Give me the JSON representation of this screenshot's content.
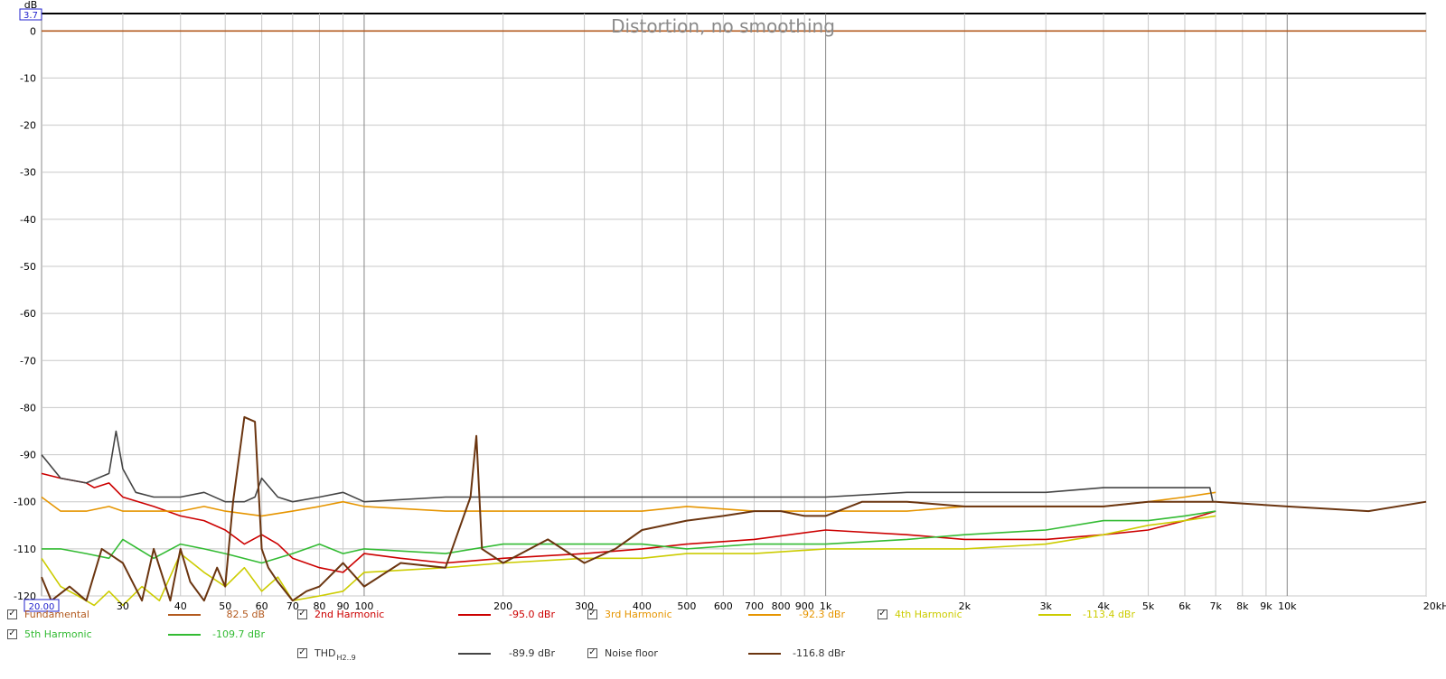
{
  "chart_data": {
    "type": "line",
    "title": "Distortion, no smoothing",
    "xlabel": "",
    "ylabel": "dB",
    "x_scale": "log",
    "xlim": [
      20,
      20000
    ],
    "ylim": [
      -120,
      3.7
    ],
    "grid": true,
    "y_ticks": [
      0,
      -10,
      -20,
      -30,
      -40,
      -50,
      -60,
      -70,
      -80,
      -90,
      -100,
      -110,
      -120
    ],
    "y_tick_labels": [
      "0",
      "-10",
      "-20",
      "-30",
      "-40",
      "-50",
      "-60",
      "-70",
      "-80",
      "-90",
      "-100",
      "-110",
      "-120"
    ],
    "x_ticks": [
      30,
      40,
      50,
      60,
      70,
      80,
      90,
      100,
      200,
      300,
      400,
      500,
      600,
      700,
      800,
      900,
      1000,
      2000,
      3000,
      4000,
      5000,
      6000,
      7000,
      8000,
      9000,
      10000,
      20000
    ],
    "x_tick_labels": [
      "30",
      "40",
      "50",
      "60",
      "70",
      "80",
      "90",
      "100",
      "200",
      "300",
      "400",
      "500",
      "600",
      "700",
      "800",
      "900",
      "1k",
      "2k",
      "3k",
      "4k",
      "5k",
      "6k",
      "7k",
      "8k",
      "9k",
      "10k",
      "20kHz"
    ],
    "x_start_label": "20.00",
    "y_top_label": "3.7",
    "series": [
      {
        "name": "Fundamental",
        "color": "#b35a1f",
        "x": [
          20,
          20000
        ],
        "y": [
          0,
          0
        ]
      },
      {
        "name": "2nd Harmonic",
        "color": "#cc0000",
        "x": [
          20,
          22,
          25,
          26,
          28,
          30,
          35,
          40,
          45,
          50,
          55,
          60,
          65,
          70,
          80,
          90,
          100,
          120,
          150,
          200,
          300,
          400,
          500,
          700,
          1000,
          1500,
          2000,
          3000,
          4000,
          5000,
          6000,
          7000
        ],
        "y": [
          -94,
          -95,
          -96,
          -97,
          -96,
          -99,
          -101,
          -103,
          -104,
          -106,
          -109,
          -107,
          -109,
          -112,
          -114,
          -115,
          -111,
          -112,
          -113,
          -112,
          -111,
          -110,
          -109,
          -108,
          -106,
          -107,
          -108,
          -108,
          -107,
          -106,
          -104,
          -102
        ]
      },
      {
        "name": "3rd Harmonic",
        "color": "#e69500",
        "x": [
          20,
          22,
          25,
          28,
          30,
          35,
          40,
          45,
          50,
          60,
          70,
          80,
          90,
          100,
          150,
          200,
          300,
          400,
          500,
          700,
          1000,
          1500,
          2000,
          3000,
          4000,
          5000,
          6000,
          7000
        ],
        "y": [
          -99,
          -102,
          -102,
          -101,
          -102,
          -102,
          -102,
          -101,
          -102,
          -103,
          -102,
          -101,
          -100,
          -101,
          -102,
          -102,
          -102,
          -102,
          -101,
          -102,
          -102,
          -102,
          -101,
          -101,
          -101,
          -100,
          -99,
          -98
        ]
      },
      {
        "name": "4th Harmonic",
        "color": "#cccc00",
        "x": [
          20,
          22,
          24,
          26,
          28,
          30,
          33,
          36,
          40,
          45,
          50,
          55,
          60,
          65,
          70,
          80,
          90,
          100,
          150,
          200,
          300,
          400,
          500,
          700,
          1000,
          1500,
          2000,
          3000,
          4000,
          5000,
          6000,
          7000
        ],
        "y": [
          -112,
          -118,
          -120,
          -122,
          -119,
          -122,
          -118,
          -121,
          -111,
          -115,
          -118,
          -114,
          -119,
          -116,
          -121,
          -120,
          -119,
          -115,
          -114,
          -113,
          -112,
          -112,
          -111,
          -111,
          -110,
          -110,
          -110,
          -109,
          -107,
          -105,
          -104,
          -103
        ]
      },
      {
        "name": "5th Harmonic",
        "color": "#33bb33",
        "x": [
          20,
          22,
          25,
          28,
          30,
          35,
          40,
          45,
          50,
          60,
          70,
          80,
          90,
          100,
          150,
          200,
          300,
          400,
          500,
          700,
          1000,
          1500,
          2000,
          3000,
          4000,
          5000,
          6000,
          7000
        ],
        "y": [
          -110,
          -110,
          -111,
          -112,
          -108,
          -112,
          -109,
          -110,
          -111,
          -113,
          -111,
          -109,
          -111,
          -110,
          -111,
          -109,
          -109,
          -109,
          -110,
          -109,
          -109,
          -108,
          -107,
          -106,
          -104,
          -104,
          -103,
          -102
        ]
      },
      {
        "name": "THD",
        "color": "#444444",
        "x": [
          20,
          22,
          25,
          28,
          29,
          30,
          32,
          35,
          40,
          45,
          50,
          55,
          58,
          60,
          65,
          70,
          80,
          90,
          100,
          150,
          200,
          300,
          400,
          500,
          700,
          1000,
          1500,
          2000,
          3000,
          4000,
          5000,
          6000,
          6800,
          6900
        ],
        "y": [
          -90,
          -95,
          -96,
          -94,
          -85,
          -93,
          -98,
          -99,
          -99,
          -98,
          -100,
          -100,
          -99,
          -95,
          -99,
          -100,
          -99,
          -98,
          -100,
          -99,
          -99,
          -99,
          -99,
          -99,
          -99,
          -99,
          -98,
          -98,
          -98,
          -97,
          -97,
          -97,
          -97,
          -100
        ]
      },
      {
        "name": "Noise floor",
        "color": "#6b3510",
        "x": [
          20,
          21,
          23,
          25,
          27,
          30,
          33,
          35,
          38,
          40,
          42,
          45,
          48,
          50,
          52,
          55,
          58,
          60,
          62,
          65,
          70,
          75,
          80,
          90,
          100,
          120,
          150,
          170,
          175,
          180,
          200,
          250,
          300,
          350,
          400,
          500,
          600,
          700,
          800,
          900,
          1000,
          1200,
          1500,
          2000,
          3000,
          4000,
          5000,
          7000,
          10000,
          15000,
          20000
        ],
        "y": [
          -116,
          -121,
          -118,
          -121,
          -110,
          -113,
          -121,
          -110,
          -121,
          -110,
          -117,
          -121,
          -114,
          -118,
          -100,
          -82,
          -83,
          -110,
          -114,
          -117,
          -121,
          -119,
          -118,
          -113,
          -118,
          -113,
          -114,
          -99,
          -86,
          -110,
          -113,
          -108,
          -113,
          -110,
          -106,
          -104,
          -103,
          -102,
          -102,
          -103,
          -103,
          -100,
          -100,
          -101,
          -101,
          -101,
          -100,
          -100,
          -101,
          -102,
          -100
        ]
      }
    ]
  },
  "legend": [
    {
      "label": "Fundamental",
      "value": "82.5 dB",
      "color": "#b35a1f",
      "checked": true
    },
    {
      "label": "2nd Harmonic",
      "value": "-95.0 dBr",
      "color": "#cc0000",
      "checked": true
    },
    {
      "label": "3rd Harmonic",
      "value": "-92.3 dBr",
      "color": "#e69500",
      "checked": true
    },
    {
      "label": "4th Harmonic",
      "value": "-113.4 dBr",
      "color": "#cccc00",
      "checked": true
    },
    {
      "label": "5th Harmonic",
      "value": "-109.7 dBr",
      "color": "#33bb33",
      "checked": true
    },
    {
      "label": "THD",
      "sub": "H2..9",
      "value": "-89.9 dBr",
      "color": "#444444",
      "checked": true
    },
    {
      "label": "Noise floor",
      "value": "-116.8 dBr",
      "color": "#6b3510",
      "checked": true
    }
  ]
}
